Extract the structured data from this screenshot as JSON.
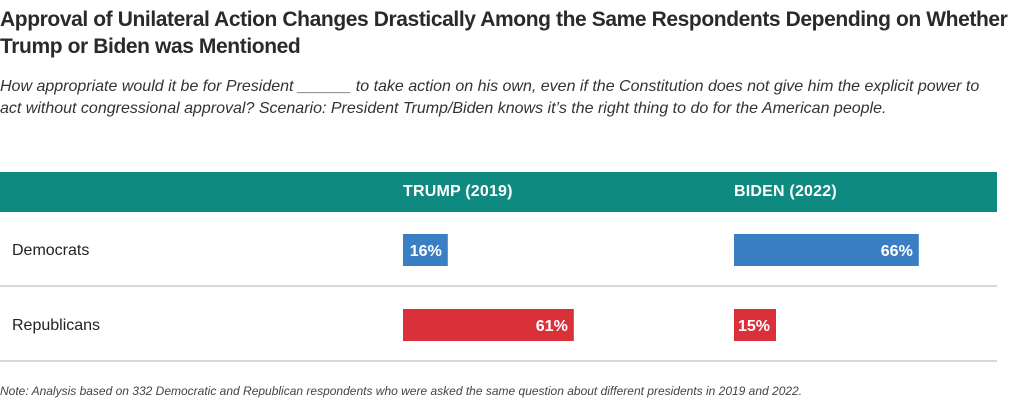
{
  "title": "Approval of Unilateral Action Changes Drastically Among the Same Respondents Depending on Whether Trump or Biden was Mentioned",
  "subtitle": "How appropriate would it be for President ______ to take action on his own, even if the Constitution does not give him the explicit power to act without congressional approval? Scenario: President Trump/Biden knows it’s the right thing to do for the American people.",
  "note": "Note: Analysis based on 332 Democratic and Republican respondents who were asked the same question about different presidents in 2019 and 2022.",
  "colors": {
    "header": "#0e8a80",
    "democrats": "#3a7fc4",
    "republicans": "#d9303a",
    "divider": "#b0b0b0"
  },
  "chart_data": {
    "type": "bar",
    "title": "Approval of Unilateral Action Changes Drastically Among the Same Respondents Depending on Whether Trump or Biden was Mentioned",
    "columns": [
      "TRUMP (2019)",
      "BIDEN (2022)"
    ],
    "rows": [
      {
        "label": "Democrats",
        "color": "#3a7fc4",
        "values": [
          16,
          66
        ],
        "value_labels": [
          "16%",
          "66%"
        ]
      },
      {
        "label": "Republicans",
        "color": "#d9303a",
        "values": [
          61,
          15
        ],
        "value_labels": [
          "61%",
          "15%"
        ]
      }
    ],
    "unit": "%",
    "grid": false
  }
}
